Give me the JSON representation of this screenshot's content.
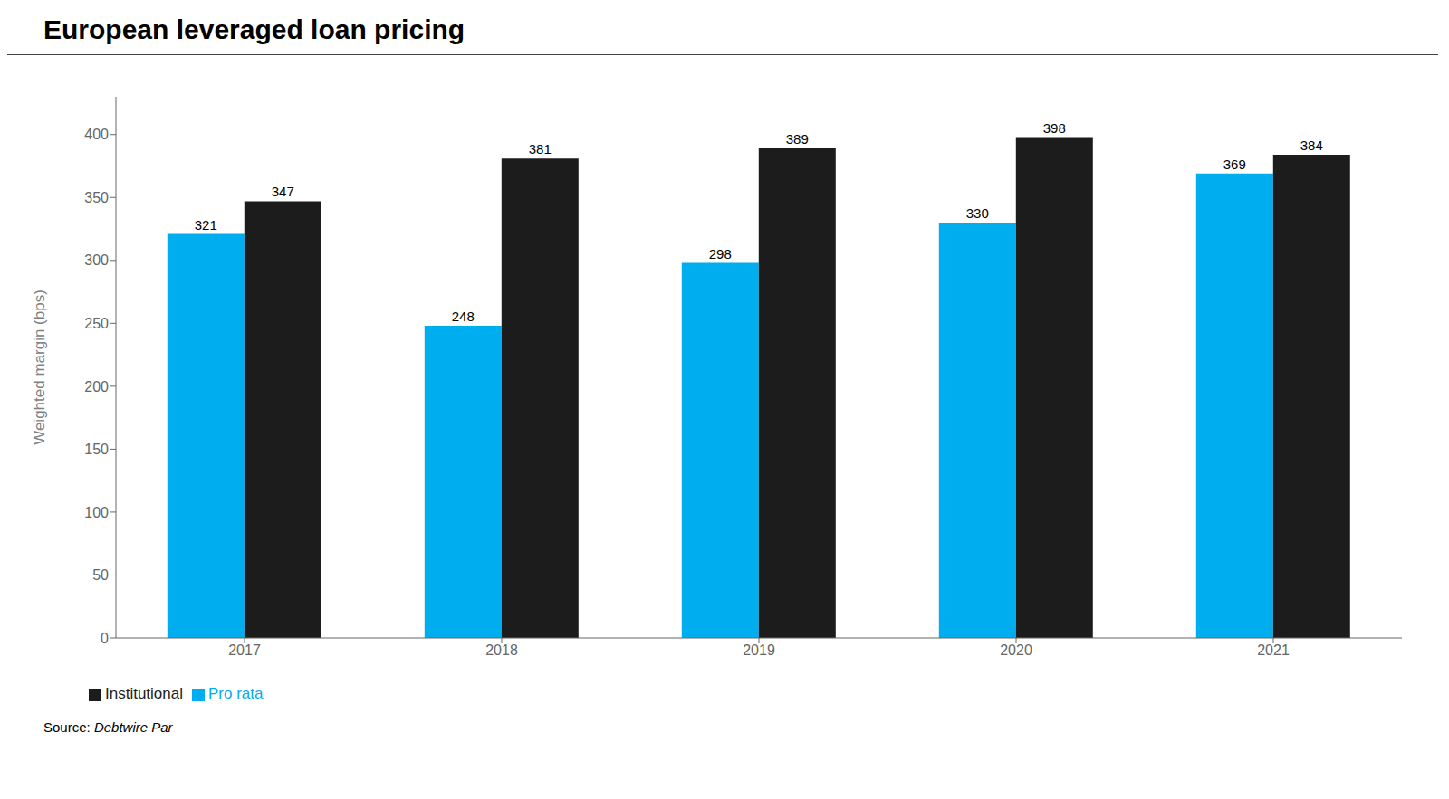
{
  "chart_data": {
    "type": "bar",
    "title": "European leveraged loan pricing",
    "ylabel": "Weighted margin (bps)",
    "annotations": [
      "Source: ",
      "Debtwire Par"
    ],
    "categories": [
      "2017",
      "2018",
      "2019",
      "2020",
      "2021"
    ],
    "series": [
      {
        "name": "Pro rata",
        "color": "#00AEEF",
        "values": [
          321,
          248,
          298,
          330,
          369
        ]
      },
      {
        "name": "Institutional",
        "color": "#1C1C1C",
        "values": [
          347,
          381,
          389,
          398,
          384
        ]
      }
    ],
    "ylim": [
      0,
      430
    ],
    "yticks": [
      0,
      50,
      100,
      150,
      200,
      250,
      300,
      350,
      400
    ],
    "data_labels": true,
    "legend": "bottom",
    "grid": false
  }
}
